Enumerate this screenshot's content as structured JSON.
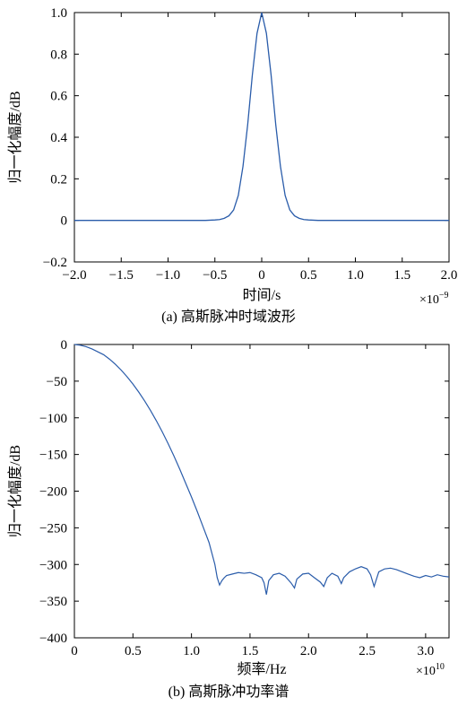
{
  "chart_data": [
    {
      "type": "line",
      "caption": "(a) 高斯脉冲时域波形",
      "xlabel": "时间/s",
      "ylabel": "归一化幅度/dB",
      "x_multiplier_text": "×10",
      "x_multiplier_exp": "−9",
      "xlim": [
        -2.0,
        2.0
      ],
      "ylim": [
        -0.2,
        1.0
      ],
      "xticks": [
        -2.0,
        -1.5,
        -1.0,
        -0.5,
        0,
        0.5,
        1.0,
        1.5,
        2.0
      ],
      "xtick_labels": [
        "−2.0",
        "−1.5",
        "−1.0",
        "−0.5",
        "0",
        "0.5",
        "1.0",
        "1.5",
        "2.0"
      ],
      "yticks": [
        -0.2,
        0,
        0.2,
        0.4,
        0.6,
        0.8,
        1.0
      ],
      "ytick_labels": [
        "−0.2",
        "0",
        "0.2",
        "0.4",
        "0.6",
        "0.8",
        "1.0"
      ],
      "grid": false,
      "line_color": "#2a5caa",
      "series": [
        {
          "x": [
            -2.0,
            -0.6,
            -0.5,
            -0.45,
            -0.4,
            -0.35,
            -0.3,
            -0.25,
            -0.2,
            -0.15,
            -0.1,
            -0.05,
            0,
            0.05,
            0.1,
            0.15,
            0.2,
            0.25,
            0.3,
            0.35,
            0.4,
            0.45,
            0.5,
            0.6,
            2.0
          ],
          "y": [
            0,
            0,
            0.002,
            0.004,
            0.01,
            0.022,
            0.05,
            0.12,
            0.26,
            0.46,
            0.7,
            0.9,
            1.0,
            0.9,
            0.7,
            0.46,
            0.26,
            0.12,
            0.05,
            0.022,
            0.01,
            0.004,
            0.002,
            0,
            0
          ]
        }
      ]
    },
    {
      "type": "line",
      "caption": "(b) 高斯脉冲功率谱",
      "xlabel": "频率/Hz",
      "ylabel": "归一化幅度/dB",
      "x_multiplier_text": "×10",
      "x_multiplier_exp": "10",
      "xlim": [
        0,
        3.2
      ],
      "ylim": [
        -400,
        0
      ],
      "xticks": [
        0,
        0.5,
        1.0,
        1.5,
        2.0,
        2.5,
        3.0
      ],
      "xtick_labels": [
        "0",
        "0.5",
        "1.0",
        "1.5",
        "2.0",
        "2.5",
        "3.0"
      ],
      "yticks": [
        0,
        -50,
        -100,
        -150,
        -200,
        -250,
        -300,
        -350,
        -400
      ],
      "ytick_labels": [
        "0",
        "−50",
        "−100",
        "−150",
        "−200",
        "−250",
        "−300",
        "−350",
        "−400"
      ],
      "grid": false,
      "line_color": "#2a5caa",
      "series": [
        {
          "x": [
            0,
            0.05,
            0.1,
            0.15,
            0.2,
            0.25,
            0.3,
            0.35,
            0.4,
            0.45,
            0.5,
            0.55,
            0.6,
            0.65,
            0.7,
            0.75,
            0.8,
            0.85,
            0.9,
            0.95,
            1.0,
            1.05,
            1.1,
            1.15,
            1.2,
            1.22,
            1.24,
            1.26,
            1.28,
            1.3,
            1.35,
            1.4,
            1.45,
            1.5,
            1.55,
            1.6,
            1.62,
            1.64,
            1.66,
            1.7,
            1.75,
            1.8,
            1.85,
            1.88,
            1.9,
            1.95,
            2.0,
            2.05,
            2.1,
            2.13,
            2.16,
            2.2,
            2.25,
            2.28,
            2.3,
            2.35,
            2.4,
            2.45,
            2.5,
            2.53,
            2.56,
            2.6,
            2.65,
            2.7,
            2.75,
            2.8,
            2.85,
            2.9,
            2.95,
            3.0,
            3.05,
            3.1,
            3.15,
            3.2
          ],
          "y": [
            0,
            -1,
            -3,
            -6,
            -10,
            -14,
            -20,
            -27,
            -35,
            -44,
            -54,
            -65,
            -77,
            -90,
            -104,
            -119,
            -135,
            -152,
            -170,
            -189,
            -208,
            -228,
            -249,
            -270,
            -300,
            -318,
            -328,
            -322,
            -318,
            -315,
            -313,
            -311,
            -312,
            -311,
            -314,
            -318,
            -325,
            -341,
            -322,
            -314,
            -312,
            -316,
            -325,
            -332,
            -320,
            -313,
            -312,
            -318,
            -324,
            -330,
            -318,
            -312,
            -316,
            -326,
            -318,
            -310,
            -306,
            -303,
            -306,
            -314,
            -330,
            -310,
            -306,
            -305,
            -307,
            -310,
            -313,
            -316,
            -318,
            -315,
            -317,
            -314,
            -316,
            -317
          ]
        }
      ]
    }
  ]
}
